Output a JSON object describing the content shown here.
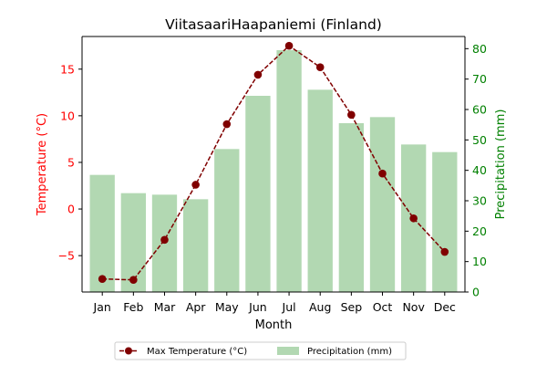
{
  "chart_data": {
    "type": "bar+line",
    "title": "ViitasaariHaapaniemi (Finland)",
    "xlabel": "Month",
    "categories": [
      "Jan",
      "Feb",
      "Mar",
      "Apr",
      "May",
      "Jun",
      "Jul",
      "Aug",
      "Sep",
      "Oct",
      "Nov",
      "Dec"
    ],
    "series": [
      {
        "name": "Max Temperature (°C)",
        "type": "line",
        "axis": "left",
        "color": "#800000",
        "values": [
          -7.5,
          -7.6,
          -3.3,
          2.6,
          9.1,
          14.4,
          17.5,
          15.2,
          10.1,
          3.8,
          -1.0,
          -4.6
        ]
      },
      {
        "name": "Precipitation (mm)",
        "type": "bar",
        "axis": "right",
        "color": "#b2d8b2",
        "values": [
          38.5,
          32.5,
          32,
          30.5,
          47,
          64.5,
          79.5,
          66.5,
          55.5,
          57.5,
          48.5,
          46
        ]
      }
    ],
    "y_left": {
      "label": "Temperature (°C)",
      "color": "#ff0000",
      "range": [
        -8.9,
        18.5
      ],
      "ticks": [
        -5,
        0,
        5,
        10,
        15
      ]
    },
    "y_right": {
      "label": "Precipitation (mm)",
      "color": "#008000",
      "range": [
        0,
        84
      ],
      "ticks": [
        0,
        10,
        20,
        30,
        40,
        50,
        60,
        70,
        80
      ]
    },
    "grid": false,
    "legend": "bottom-center"
  }
}
